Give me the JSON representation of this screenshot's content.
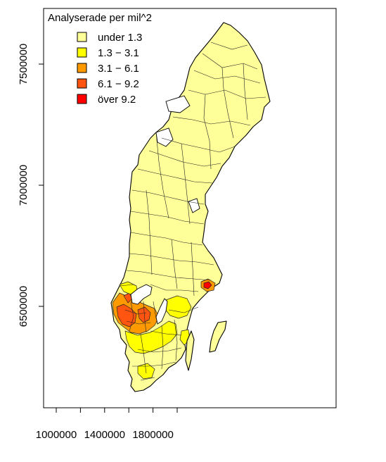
{
  "legend": {
    "title": "Analyserade per mil^2",
    "entries": [
      {
        "label": "under 1.3",
        "color": "#ffff99"
      },
      {
        "label": "1.3 − 3.1",
        "color": "#ffff00"
      },
      {
        "label": "3.1 − 6.1",
        "color": "#ff9900"
      },
      {
        "label": "6.1 − 9.2",
        "color": "#ff5511"
      },
      {
        "label": "över 9.2",
        "color": "#ff0000"
      }
    ]
  },
  "axes": {
    "x_ticks": [
      {
        "label": "1000000",
        "value": 1000000
      },
      {
        "label": "1400000",
        "value": 1400000
      },
      {
        "label": "1800000",
        "value": 1800000
      }
    ],
    "x_minor_ticks": [
      1200000,
      1600000,
      2000000
    ],
    "y_ticks": [
      {
        "label": "6500000",
        "value": 6500000
      },
      {
        "label": "7000000",
        "value": 7000000
      },
      {
        "label": "7500000",
        "value": 7500000
      }
    ]
  },
  "colors": {
    "background": "#ffffff",
    "border": "#000000"
  }
}
